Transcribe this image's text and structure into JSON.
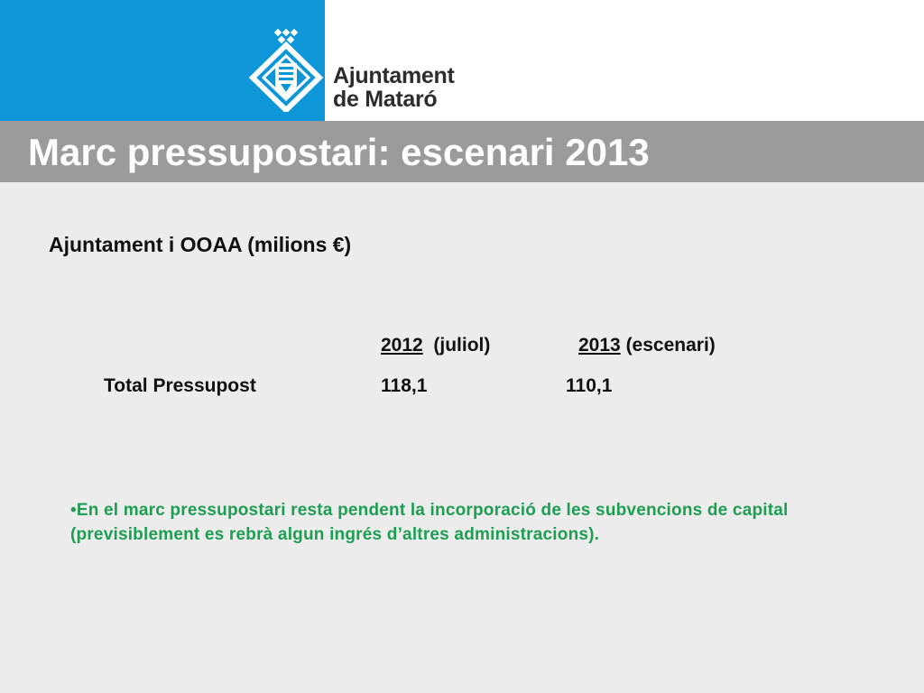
{
  "header": {
    "brand_line1": "Ajuntament",
    "brand_line2": "de Mataró",
    "logo_icon": "coat-of-arms-icon",
    "colors": {
      "brand_blue": "#0d96d8",
      "title_bar": "#9b9b9b",
      "note_green": "#1e9e52"
    }
  },
  "slide": {
    "title": "Marc pressupostari: escenari 2013",
    "subtitle": "Ajuntament i OOAA (milions €)"
  },
  "table": {
    "col1_year": "2012",
    "col1_qualifier": "(juliol)",
    "col2_year": "2013",
    "col2_qualifier": "(escenari)",
    "row_label": "Total Pressupost",
    "row_value_2012": "118,1",
    "row_value_2013": "110,1"
  },
  "note": {
    "text": "•En el marc pressupostari resta pendent la incorporació de les subvencions de capital (previsiblement es rebrà algun ingrés d’altres administracions)."
  }
}
